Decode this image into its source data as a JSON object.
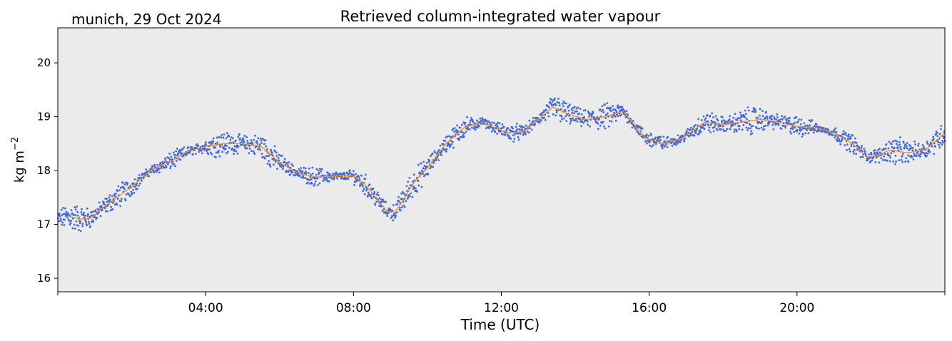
{
  "colors": {
    "background": "#ffffff",
    "plot_background": "#ebebeb",
    "scatter": "#4169e1",
    "smooth_line": "#ff8c00",
    "axis": "#000000"
  },
  "chart_data": {
    "type": "scatter",
    "title": "Retrieved column-integrated water vapour",
    "corner_label": "munich, 29 Oct 2024",
    "xlabel": "Time (UTC)",
    "ylabel": "kg m",
    "ylabel_superscript": "−2",
    "x_unit": "hours UTC",
    "xlim": [
      0,
      24
    ],
    "ylim": [
      15.75,
      20.65
    ],
    "x_ticks": [
      {
        "value": 4,
        "label": "04:00"
      },
      {
        "value": 8,
        "label": "08:00"
      },
      {
        "value": 12,
        "label": "12:00"
      },
      {
        "value": 16,
        "label": "16:00"
      },
      {
        "value": 20,
        "label": "20:00"
      }
    ],
    "x_minor_ticks": [
      0,
      24
    ],
    "y_ticks": [
      {
        "value": 16,
        "label": "16"
      },
      {
        "value": 17,
        "label": "17"
      },
      {
        "value": 18,
        "label": "18"
      },
      {
        "value": 19,
        "label": "19"
      },
      {
        "value": 20,
        "label": "20"
      }
    ],
    "grid": false,
    "series": [
      {
        "kind": "smoothed-line",
        "color": "#ff8c00",
        "x": [
          0.3,
          0.6,
          0.9,
          1.2,
          1.6,
          2.0,
          2.5,
          3.0,
          3.5,
          4.0,
          4.5,
          5.0,
          5.5,
          6.0,
          6.5,
          7.0,
          7.5,
          8.0,
          8.3,
          8.6,
          8.9,
          9.1,
          9.3,
          9.6,
          10.0,
          10.5,
          11.0,
          11.5,
          11.8,
          12.2,
          12.6,
          13.0,
          13.4,
          13.8,
          14.3,
          14.8,
          15.3,
          15.6,
          15.9,
          16.4,
          16.9,
          17.5,
          18.0,
          18.5,
          19.0,
          19.5,
          20.0,
          20.5,
          21.0,
          21.5,
          21.9,
          22.2,
          22.5,
          23.0,
          23.5,
          24.0
        ],
        "y": [
          17.15,
          17.1,
          17.12,
          17.3,
          17.5,
          17.7,
          18.0,
          18.15,
          18.35,
          18.45,
          18.5,
          18.5,
          18.45,
          18.15,
          17.95,
          17.88,
          17.9,
          17.9,
          17.75,
          17.5,
          17.25,
          17.22,
          17.4,
          17.75,
          18.05,
          18.5,
          18.8,
          18.9,
          18.8,
          18.7,
          18.72,
          18.95,
          19.18,
          19.05,
          18.95,
          19.0,
          19.1,
          18.85,
          18.6,
          18.5,
          18.6,
          18.9,
          18.85,
          18.9,
          18.95,
          18.9,
          18.82,
          18.8,
          18.7,
          18.5,
          18.25,
          18.28,
          18.38,
          18.33,
          18.4,
          18.7
        ]
      },
      {
        "kind": "scatter",
        "color": "#4169e1",
        "note_spread": 0.45,
        "x": [
          0.0,
          0.3,
          0.6,
          0.9,
          1.2,
          1.6,
          2.0,
          2.5,
          3.0,
          3.5,
          4.0,
          4.5,
          5.0,
          5.5,
          6.0,
          6.5,
          7.0,
          7.5,
          8.0,
          8.3,
          8.6,
          8.9,
          9.1,
          9.3,
          9.6,
          10.0,
          10.5,
          11.0,
          11.5,
          11.8,
          12.2,
          12.6,
          13.0,
          13.4,
          13.8,
          14.3,
          14.8,
          15.3,
          15.6,
          15.9,
          16.4,
          16.9,
          17.5,
          18.0,
          18.5,
          19.0,
          19.5,
          20.0,
          20.5,
          21.0,
          21.5,
          21.9,
          22.2,
          22.5,
          23.0,
          23.5,
          24.0
        ],
        "y": [
          17.1,
          17.15,
          17.1,
          17.12,
          17.3,
          17.5,
          17.7,
          18.0,
          18.15,
          18.35,
          18.45,
          18.5,
          18.5,
          18.45,
          18.15,
          17.95,
          17.88,
          17.9,
          17.9,
          17.75,
          17.5,
          17.25,
          17.22,
          17.4,
          17.75,
          18.05,
          18.5,
          18.8,
          18.9,
          18.8,
          18.7,
          18.72,
          18.95,
          19.18,
          19.05,
          18.95,
          19.0,
          19.1,
          18.85,
          18.6,
          18.5,
          18.6,
          18.9,
          18.85,
          18.9,
          18.95,
          18.9,
          18.82,
          18.8,
          18.7,
          18.5,
          18.25,
          18.28,
          18.38,
          18.33,
          18.4,
          18.7
        ]
      }
    ]
  }
}
